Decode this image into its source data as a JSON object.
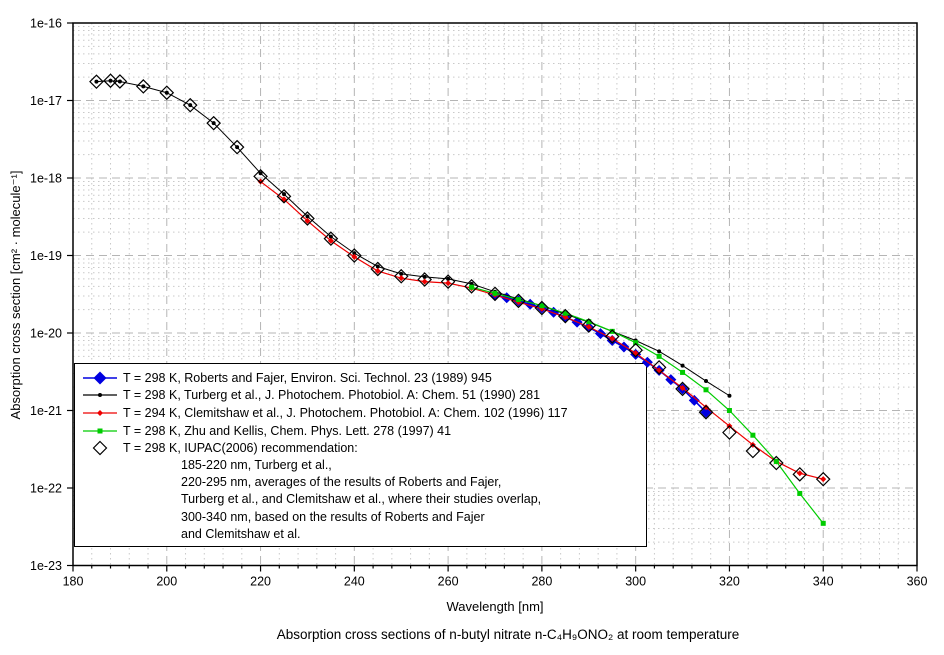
{
  "title": "Absorption cross sections of n-butyl nitrate n-C₄H₉ONO₂ at room temperature",
  "chart_data": {
    "type": "line",
    "xlabel": "Wavelength [nm]",
    "ylabel": "Absorption cross section [cm² · molecule⁻¹]",
    "x_axis": {
      "min": 180,
      "max": 360,
      "major_tick_step": 20,
      "minor_tick_step": 4,
      "tick_labels": [
        "180",
        "200",
        "220",
        "240",
        "260",
        "280",
        "300",
        "320",
        "340",
        "360"
      ]
    },
    "y_axis": {
      "scale": "log",
      "min_exp": -23,
      "max_exp": -16,
      "tick_labels": [
        "1e-16",
        "1e-17",
        "1e-18",
        "1e-19",
        "1e-20",
        "1e-21",
        "1e-22",
        "1e-23"
      ]
    },
    "grid": {
      "major": true,
      "minor": true,
      "major_color": "#b5b5b5",
      "minor_color": "#c9c9c9"
    },
    "legend_position": "bottom-left-inside",
    "series": [
      {
        "name": "roberts_fajer",
        "label": "T = 298 K, Roberts and Fajer, Environ. Sci. Technol. 23 (1989) 945",
        "color": "#0000e0",
        "marker": "diamond-filled",
        "marker_size": 5.5,
        "line": true,
        "line_width": 1.6,
        "x": [
          270,
          272.5,
          275,
          277.5,
          280,
          282.5,
          285,
          287.5,
          290,
          292.5,
          295,
          297.5,
          300,
          302.5,
          305,
          307.5,
          310,
          312.5,
          315
        ],
        "y": [
          3.05e-20,
          2.85e-20,
          2.6e-20,
          2.35e-20,
          2.1e-20,
          1.85e-20,
          1.6e-20,
          1.38e-20,
          1.18e-20,
          9.8e-21,
          8e-21,
          6.6e-21,
          5.3e-21,
          4.2e-21,
          3.3e-21,
          2.5e-21,
          1.9e-21,
          1.35e-21,
          9.5e-22
        ]
      },
      {
        "name": "turberg",
        "label": "T = 298 K, Turberg et al., J. Photochem. Photobiol. A: Chem. 51 (1990) 281",
        "color": "#000000",
        "marker": "dot",
        "marker_size": 2,
        "line": true,
        "line_width": 1,
        "x": [
          185,
          188,
          190,
          195,
          200,
          205,
          210,
          215,
          220,
          225,
          230,
          235,
          240,
          245,
          250,
          255,
          260,
          265,
          270,
          275,
          280,
          285,
          290,
          295,
          300,
          305,
          310,
          315,
          320
        ],
        "y": [
          1.75e-17,
          1.8e-17,
          1.76e-17,
          1.52e-17,
          1.26e-17,
          8.7e-18,
          5.1e-18,
          2.5e-18,
          1.15e-18,
          6.2e-19,
          3.2e-19,
          1.75e-19,
          1.07e-19,
          7.2e-20,
          5.8e-20,
          5.3e-20,
          5e-20,
          4.3e-20,
          3.4e-20,
          2.75e-20,
          2.25e-20,
          1.75e-20,
          1.38e-20,
          1.05e-20,
          8e-21,
          5.8e-21,
          3.8e-21,
          2.4e-21,
          1.55e-21
        ]
      },
      {
        "name": "clemitshaw",
        "label": "T = 294 K, Clemitshaw et al., J. Photochem. Photobiol. A: Chem. 102 (1996) 117",
        "color": "#ee0000",
        "marker": "diamond-small",
        "marker_size": 3,
        "line": true,
        "line_width": 1.2,
        "x": [
          220,
          225,
          230,
          235,
          240,
          245,
          250,
          255,
          260,
          265,
          270,
          275,
          280,
          285,
          290,
          295,
          300,
          305,
          310,
          315,
          320,
          325,
          330,
          335,
          340
        ],
        "y": [
          9e-19,
          5.3e-19,
          2.8e-19,
          1.55e-19,
          9.6e-20,
          6.3e-20,
          5.1e-20,
          4.6e-20,
          4.4e-20,
          3.8e-20,
          3.1e-20,
          2.5e-20,
          2.05e-20,
          1.6e-20,
          1.2e-20,
          8.5e-21,
          5.5e-21,
          3.3e-21,
          1.95e-21,
          1.1e-21,
          6.3e-22,
          3.6e-22,
          2.2e-22,
          1.55e-22,
          1.3e-22
        ]
      },
      {
        "name": "zhu_kellis",
        "label": "T = 298 K, Zhu and Kellis, Chem. Phys. Lett. 278 (1997) 41",
        "color": "#00cc00",
        "marker": "square",
        "marker_size": 2.5,
        "line": true,
        "line_width": 1.2,
        "x": [
          265,
          270,
          275,
          280,
          285,
          290,
          295,
          300,
          305,
          310,
          315,
          320,
          325,
          330,
          335,
          340
        ],
        "y": [
          3.9e-20,
          3.25e-20,
          2.7e-20,
          2.25e-20,
          1.8e-20,
          1.4e-20,
          1.05e-20,
          7.5e-21,
          5e-21,
          3.1e-21,
          1.85e-21,
          1e-21,
          4.8e-22,
          2.2e-22,
          8.5e-23,
          3.5e-23
        ]
      },
      {
        "name": "iupac_2006",
        "label": "T = 298 K, IUPAC(2006) recommendation:",
        "color": "#000000",
        "marker": "diamond-open",
        "marker_size": 6.5,
        "line": false,
        "line_width": 0,
        "x": [
          185,
          188,
          190,
          195,
          200,
          205,
          210,
          215,
          220,
          225,
          230,
          235,
          240,
          245,
          250,
          255,
          260,
          265,
          270,
          275,
          280,
          285,
          290,
          295,
          300,
          305,
          310,
          315,
          320,
          325,
          330,
          335,
          340
        ],
        "y": [
          1.75e-17,
          1.8e-17,
          1.76e-17,
          1.52e-17,
          1.26e-17,
          8.7e-18,
          5.1e-18,
          2.5e-18,
          1.05e-18,
          5.8e-19,
          3e-19,
          1.65e-19,
          1e-19,
          6.7e-20,
          5.4e-20,
          4.9e-20,
          4.6e-20,
          4e-20,
          3.2e-20,
          2.6e-20,
          2.1e-20,
          1.65e-20,
          1.25e-20,
          9e-21,
          6e-21,
          3.6e-21,
          1.9e-21,
          9.5e-22,
          5.2e-22,
          3e-22,
          2.1e-22,
          1.5e-22,
          1.3e-22
        ]
      }
    ],
    "legend_notes": [
      "185-220 nm, Turberg et al.,",
      "220-295 nm, averages of the results of Roberts and Fajer,",
      "Turberg et al., and Clemitshaw et al., where their studies overlap,",
      "300-340 nm, based on the results of Roberts and Fajer",
      "and Clemitshaw et al."
    ]
  }
}
